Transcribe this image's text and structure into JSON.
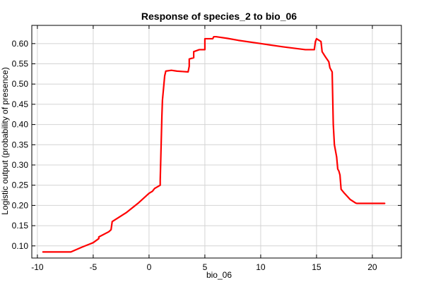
{
  "chart_data": {
    "type": "line",
    "title": "Response of species_2 to bio_06",
    "xlabel": "bio_06",
    "ylabel": "Logistic output (probability of presence)",
    "xlim": [
      -10.5,
      22.6
    ],
    "ylim": [
      0.07,
      0.645
    ],
    "x_ticks": [
      -10,
      -5,
      0,
      5,
      10,
      15,
      20
    ],
    "y_ticks": [
      0.1,
      0.15,
      0.2,
      0.25,
      0.3,
      0.35,
      0.4,
      0.45,
      0.5,
      0.55,
      0.6
    ],
    "x_tick_labels": [
      "-10",
      "-5",
      "0",
      "5",
      "10",
      "15",
      "20"
    ],
    "y_tick_labels": [
      "0.10",
      "0.15",
      "0.20",
      "0.25",
      "0.30",
      "0.35",
      "0.40",
      "0.45",
      "0.50",
      "0.55",
      "0.60"
    ],
    "grid": true,
    "line_color": "#ff0000",
    "series": [
      {
        "x": [
          -9.5,
          -7.0,
          -6.0,
          -5.0,
          -4.5,
          -4.5,
          -3.6,
          -3.4,
          -3.3,
          -2.0,
          -1.0,
          0.0,
          0.3,
          0.5,
          1.0,
          1.0,
          1.15,
          1.2,
          1.4,
          1.5,
          2.0,
          2.5,
          3.0,
          3.5,
          3.6,
          3.6,
          4.0,
          4.0,
          4.5,
          5.0,
          5.0,
          5.7,
          5.8,
          6.0,
          7.0,
          8.0,
          10.0,
          12.0,
          14.0,
          14.8,
          14.9,
          15.0,
          15.4,
          15.5,
          15.8,
          16.1,
          16.2,
          16.3,
          16.4,
          16.5,
          16.6,
          16.8,
          16.9,
          17.0,
          17.1,
          17.2,
          17.5,
          18.0,
          18.5,
          18.6,
          20.0,
          21.1
        ],
        "y": [
          0.085,
          0.085,
          0.097,
          0.108,
          0.118,
          0.122,
          0.135,
          0.14,
          0.16,
          0.183,
          0.205,
          0.23,
          0.235,
          0.242,
          0.25,
          0.262,
          0.42,
          0.46,
          0.52,
          0.532,
          0.534,
          0.532,
          0.531,
          0.53,
          0.544,
          0.562,
          0.565,
          0.58,
          0.585,
          0.585,
          0.612,
          0.612,
          0.617,
          0.617,
          0.613,
          0.608,
          0.6,
          0.592,
          0.585,
          0.585,
          0.605,
          0.612,
          0.605,
          0.58,
          0.567,
          0.555,
          0.54,
          0.535,
          0.53,
          0.4,
          0.35,
          0.32,
          0.29,
          0.285,
          0.275,
          0.24,
          0.23,
          0.215,
          0.206,
          0.205,
          0.205,
          0.205
        ]
      }
    ]
  }
}
